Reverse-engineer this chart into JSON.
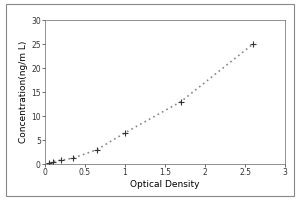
{
  "x_data": [
    0.05,
    0.1,
    0.2,
    0.35,
    0.65,
    1.0,
    1.7,
    2.6
  ],
  "y_data": [
    0.2,
    0.5,
    0.8,
    1.2,
    3.0,
    6.5,
    13.0,
    25.0
  ],
  "xlabel": "Optical Density",
  "ylabel": "Concentration(ng/m L)",
  "xlim": [
    0,
    3
  ],
  "ylim": [
    0,
    30
  ],
  "xticks": [
    0,
    0.5,
    1,
    1.5,
    2,
    2.5,
    3
  ],
  "yticks": [
    0,
    5,
    10,
    15,
    20,
    25,
    30
  ],
  "xtick_labels": [
    "0",
    "0.5",
    "1",
    "1.5",
    "2",
    "2.5",
    "3"
  ],
  "ytick_labels": [
    "0",
    "5",
    "10",
    "15",
    "20",
    "25",
    "30"
  ],
  "line_color": "#888888",
  "marker": "+",
  "marker_color": "#333333",
  "marker_size": 5,
  "line_width": 1.2,
  "bg_color": "#ffffff",
  "axis_bg_color": "#ffffff",
  "font_size_label": 6.5,
  "font_size_tick": 5.5,
  "outer_border_color": "#aaaaaa",
  "outer_border_lw": 1.0
}
